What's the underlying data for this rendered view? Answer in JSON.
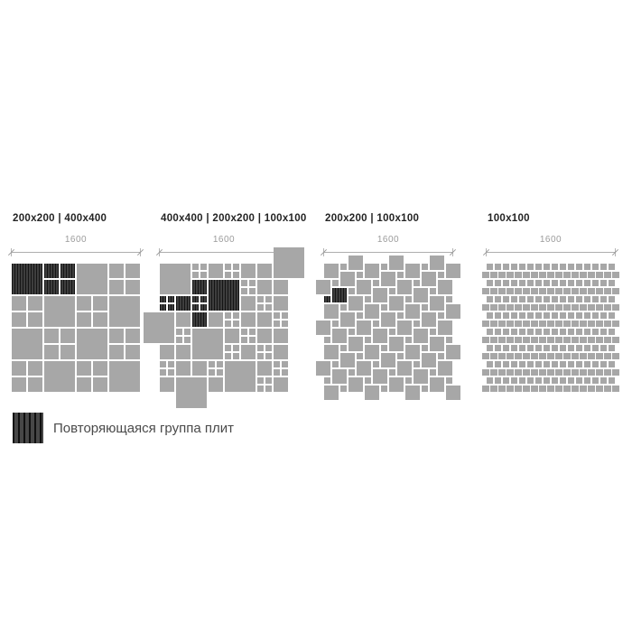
{
  "dim_label": "1600",
  "legend": {
    "label": "Повторяющаяся группа плит"
  },
  "colors": {
    "tile": "#a7a7a7",
    "dark_base": "#3e3e3e",
    "dark_stripe": "#151515",
    "title": "#242424",
    "dim": "#9b9b9b",
    "legend_text": "#4a4a4a"
  },
  "panels": [
    {
      "title": "200x200 | 400x400",
      "pattern": {
        "type": "blocks",
        "blocks": [
          "s",
          "q",
          "s",
          "q",
          "q",
          "s",
          "q",
          "s",
          "s",
          "q",
          "s",
          "q",
          "q",
          "s",
          "q",
          "s"
        ],
        "dark_blocks": [
          0,
          1
        ]
      }
    },
    {
      "title": "400x400 | 200x200 | 100x100",
      "pattern": {
        "type": "tiles",
        "t400": [
          [
            0,
            0,
            0
          ],
          [
            6,
            2,
            1
          ],
          [
            4,
            8,
            0
          ],
          [
            8,
            12,
            0
          ]
        ],
        "t400_over": [
          [
            14,
            -2
          ],
          [
            -2,
            6
          ],
          [
            2,
            14
          ]
        ],
        "t200": [
          [
            6,
            0,
            0
          ],
          [
            10,
            0,
            0
          ],
          [
            12,
            0,
            0
          ],
          [
            4,
            2,
            1
          ],
          [
            12,
            2,
            0
          ],
          [
            14,
            2,
            0
          ],
          [
            2,
            4,
            1
          ],
          [
            10,
            4,
            0
          ],
          [
            14,
            4,
            0
          ],
          [
            2,
            6,
            0
          ],
          [
            4,
            6,
            1
          ],
          [
            6,
            6,
            0
          ],
          [
            10,
            6,
            0
          ],
          [
            12,
            6,
            0
          ],
          [
            8,
            8,
            0
          ],
          [
            12,
            8,
            0
          ],
          [
            14,
            8,
            0
          ],
          [
            0,
            10,
            0
          ],
          [
            2,
            10,
            0
          ],
          [
            10,
            10,
            0
          ],
          [
            14,
            10,
            0
          ],
          [
            2,
            12,
            0
          ],
          [
            4,
            12,
            0
          ],
          [
            12,
            12,
            0
          ],
          [
            0,
            14,
            0
          ],
          [
            6,
            14,
            0
          ],
          [
            14,
            14,
            0
          ]
        ],
        "q100": [
          [
            4,
            0,
            0
          ],
          [
            8,
            0,
            0
          ],
          [
            10,
            2,
            0
          ],
          [
            0,
            4,
            1
          ],
          [
            4,
            4,
            1
          ],
          [
            12,
            4,
            0
          ],
          [
            8,
            6,
            0
          ],
          [
            14,
            6,
            0
          ],
          [
            2,
            8,
            0
          ],
          [
            10,
            8,
            0
          ],
          [
            8,
            10,
            0
          ],
          [
            12,
            10,
            0
          ],
          [
            0,
            12,
            0
          ],
          [
            6,
            12,
            0
          ],
          [
            14,
            12,
            0
          ],
          [
            12,
            14,
            0
          ]
        ]
      }
    },
    {
      "title": "200x200 | 100x100",
      "pattern": {
        "type": "pinwheel",
        "dark_t200": [
          1,
          3
        ],
        "dark_t100": [
          0,
          4
        ]
      }
    },
    {
      "title": "100x100",
      "pattern": {
        "type": "runningbond"
      }
    }
  ]
}
